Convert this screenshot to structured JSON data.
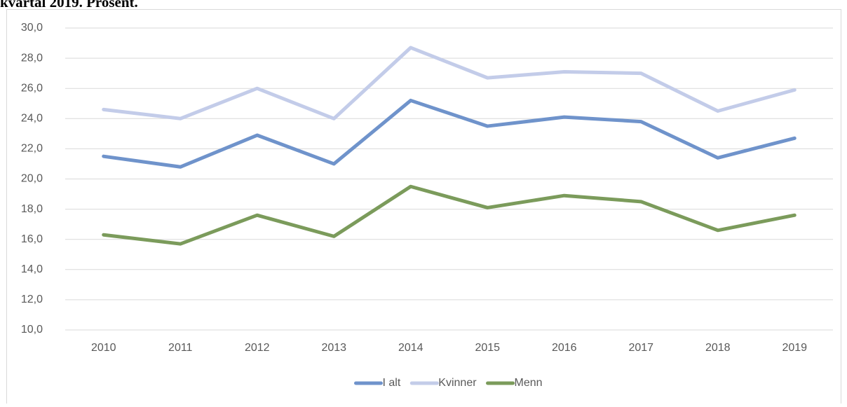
{
  "chart_data": {
    "type": "line",
    "title": "kvartal 2019. Prosent.",
    "categories": [
      "2010",
      "2011",
      "2012",
      "2013",
      "2014",
      "2015",
      "2016",
      "2017",
      "2018",
      "2019"
    ],
    "series": [
      {
        "name": "I alt",
        "color": "#6f93cb",
        "values": [
          21.5,
          20.8,
          22.9,
          21.0,
          25.2,
          23.5,
          24.1,
          23.8,
          21.4,
          22.7
        ]
      },
      {
        "name": "Kvinner",
        "color": "#c3cce9",
        "values": [
          24.6,
          24.0,
          26.0,
          24.0,
          28.7,
          26.7,
          27.1,
          27.0,
          24.5,
          25.9
        ]
      },
      {
        "name": "Menn",
        "color": "#7b9b5b",
        "values": [
          16.3,
          15.7,
          17.6,
          16.2,
          19.5,
          18.1,
          18.9,
          18.5,
          16.6,
          17.6
        ]
      }
    ],
    "ylim": [
      10,
      30
    ],
    "yticks": [
      {
        "value": 10,
        "label": "10,0"
      },
      {
        "value": 12,
        "label": "12,0"
      },
      {
        "value": 14,
        "label": "14,0"
      },
      {
        "value": 16,
        "label": "16,0"
      },
      {
        "value": 18,
        "label": "18,0"
      },
      {
        "value": 20,
        "label": "20,0"
      },
      {
        "value": 22,
        "label": "22,0"
      },
      {
        "value": 24,
        "label": "24,0"
      },
      {
        "value": 26,
        "label": "26,0"
      },
      {
        "value": 28,
        "label": "28,0"
      },
      {
        "value": 30,
        "label": "30,0"
      }
    ],
    "grid": true,
    "legend": "bottom"
  }
}
